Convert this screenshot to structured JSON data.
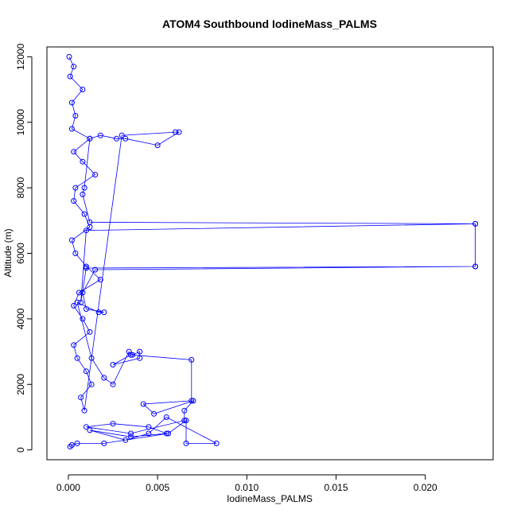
{
  "chart_data": {
    "type": "line",
    "title": "ATOM4 Southbound IodineMass_PALMS",
    "xlabel": "IodineMass_PALMS",
    "ylabel": "Altitude (m)",
    "xlim": [
      -0.0012,
      0.0238
    ],
    "ylim": [
      -300,
      12300
    ],
    "x_ticks": [
      "0.000",
      "0.005",
      "0.010",
      "0.015",
      "0.020"
    ],
    "y_ticks": [
      "0",
      "2000",
      "4000",
      "6000",
      "8000",
      "10000",
      "12000"
    ],
    "grid": false,
    "legend": "none",
    "marker": "open-circle",
    "color": "#0000FF",
    "series": [
      {
        "x": [
          5e-05,
          0.0003,
          0.0001,
          0.0008,
          0.0002,
          0.0004,
          0.0002,
          0.0012,
          0.0003,
          0.0008,
          0.0015,
          0.0004,
          0.0003,
          0.0009,
          0.0012,
          0.0002,
          0.0004,
          0.001,
          0.0018,
          0.0006,
          0.0003,
          0.0008,
          0.0012,
          0.0003,
          0.0005,
          0.001,
          0.0013,
          0.0007,
          0.0009,
          0.003,
          0.006,
          0.0062,
          0.005,
          0.0032,
          0.0027,
          0.0018,
          0.0012,
          0.0009,
          0.0008,
          0.0012,
          0.0228,
          0.0228,
          0.001,
          0.0007,
          0.001,
          0.0228,
          0.0228,
          0.0015,
          0.0008,
          0.001,
          0.002,
          0.0017,
          0.0005,
          0.0013,
          0.002,
          0.0025,
          0.0034,
          0.0036,
          0.004,
          0.004,
          0.0025,
          0.0035,
          0.0069,
          0.0069,
          0.0042,
          0.0048,
          0.007,
          0.0065,
          0.0065,
          0.0035,
          0.001,
          0.0025,
          0.0045,
          0.0055,
          0.0035,
          0.0012,
          0.0032,
          0.0045,
          0.0055,
          0.0083,
          0.0066,
          0.0066,
          0.0056,
          0.002,
          0.0005,
          0.0002,
          0.0001
        ],
        "y": [
          12000,
          11700,
          11400,
          11000,
          10600,
          10200,
          9800,
          9500,
          9100,
          8800,
          8400,
          8000,
          7600,
          7200,
          6800,
          6400,
          6000,
          5600,
          5200,
          4800,
          4400,
          4000,
          3600,
          3200,
          2800,
          2400,
          2000,
          1600,
          1200,
          9600,
          9700,
          9700,
          9300,
          9500,
          9500,
          9600,
          9500,
          8000,
          7800,
          6950,
          6900,
          5600,
          5550,
          4500,
          6700,
          6900,
          5600,
          5500,
          4800,
          4300,
          4200,
          4200,
          4500,
          2800,
          2200,
          2000,
          3000,
          2900,
          3000,
          2800,
          2600,
          2900,
          2750,
          1500,
          1400,
          1100,
          1500,
          1200,
          900,
          500,
          700,
          800,
          700,
          500,
          400,
          600,
          300,
          500,
          1000,
          200,
          200,
          900,
          500,
          200,
          200,
          150,
          100
        ]
      }
    ]
  }
}
